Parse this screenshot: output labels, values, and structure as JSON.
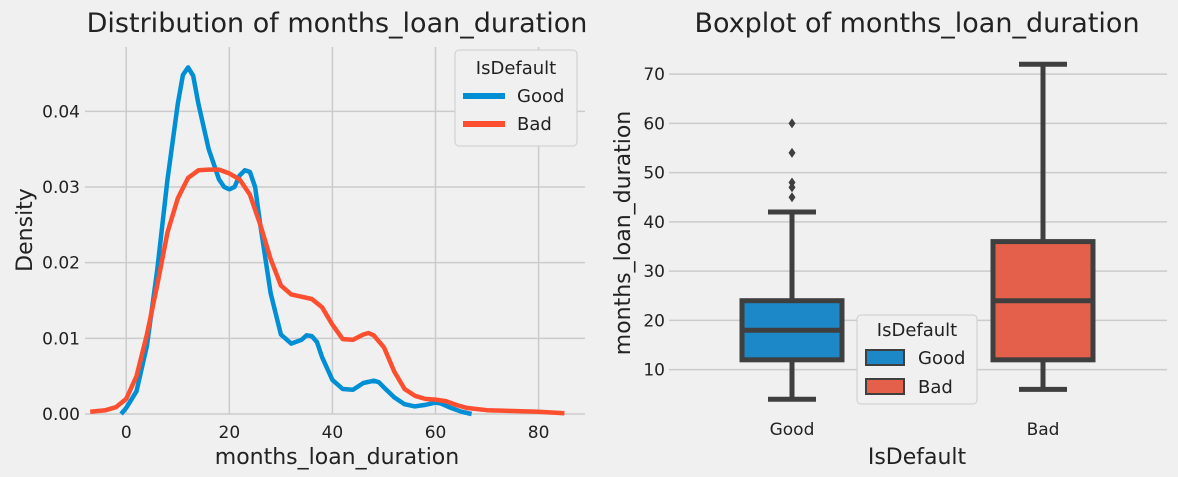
{
  "chart_data": [
    {
      "type": "line",
      "title": "Distribution of months_loan_duration",
      "xlabel": "months_loan_duration",
      "ylabel": "Density",
      "xlim": [
        -8,
        89
      ],
      "ylim": [
        0,
        0.0485
      ],
      "xticks": [
        0,
        20,
        40,
        60,
        80
      ],
      "yticks": [
        0.0,
        0.01,
        0.02,
        0.03,
        0.04
      ],
      "ytick_labels": [
        "0.00",
        "0.01",
        "0.02",
        "0.03",
        "0.04"
      ],
      "grid": true,
      "legend": {
        "title": "IsDefault",
        "placement": "top-right"
      },
      "series": [
        {
          "name": "Good",
          "color": "#008fd5",
          "points": [
            [
              -1,
              0.0
            ],
            [
              0,
              0.0008
            ],
            [
              2,
              0.003
            ],
            [
              4,
              0.009
            ],
            [
              6,
              0.019
            ],
            [
              8,
              0.031
            ],
            [
              10,
              0.041
            ],
            [
              11,
              0.0448
            ],
            [
              12,
              0.0458
            ],
            [
              13,
              0.0447
            ],
            [
              14,
              0.041
            ],
            [
              16,
              0.035
            ],
            [
              18,
              0.031
            ],
            [
              19,
              0.03
            ],
            [
              20,
              0.0297
            ],
            [
              21,
              0.03
            ],
            [
              22,
              0.0315
            ],
            [
              23,
              0.0322
            ],
            [
              24,
              0.032
            ],
            [
              25,
              0.03
            ],
            [
              26,
              0.025
            ],
            [
              28,
              0.016
            ],
            [
              30,
              0.0105
            ],
            [
              32,
              0.0093
            ],
            [
              34,
              0.0098
            ],
            [
              35,
              0.0104
            ],
            [
              36,
              0.0103
            ],
            [
              37,
              0.0095
            ],
            [
              38,
              0.0075
            ],
            [
              40,
              0.0045
            ],
            [
              42,
              0.0033
            ],
            [
              44,
              0.0032
            ],
            [
              46,
              0.0041
            ],
            [
              48,
              0.0044
            ],
            [
              49,
              0.0042
            ],
            [
              50,
              0.0035
            ],
            [
              52,
              0.0022
            ],
            [
              54,
              0.0013
            ],
            [
              56,
              0.001
            ],
            [
              58,
              0.0012
            ],
            [
              60,
              0.0015
            ],
            [
              61,
              0.0014
            ],
            [
              63,
              0.0008
            ],
            [
              65,
              0.0003
            ],
            [
              67,
              0.0
            ]
          ]
        },
        {
          "name": "Bad",
          "color": "#fc4f30",
          "points": [
            [
              -7,
              0.0003
            ],
            [
              -4,
              0.0005
            ],
            [
              -2,
              0.0009
            ],
            [
              0,
              0.002
            ],
            [
              2,
              0.005
            ],
            [
              4,
              0.0105
            ],
            [
              6,
              0.017
            ],
            [
              8,
              0.024
            ],
            [
              10,
              0.0285
            ],
            [
              12,
              0.0312
            ],
            [
              14,
              0.0322
            ],
            [
              16,
              0.0323
            ],
            [
              18,
              0.0323
            ],
            [
              20,
              0.0318
            ],
            [
              22,
              0.031
            ],
            [
              24,
              0.029
            ],
            [
              26,
              0.025
            ],
            [
              28,
              0.0205
            ],
            [
              30,
              0.017
            ],
            [
              32,
              0.0158
            ],
            [
              34,
              0.0155
            ],
            [
              36,
              0.0152
            ],
            [
              38,
              0.0141
            ],
            [
              40,
              0.0118
            ],
            [
              42,
              0.0099
            ],
            [
              44,
              0.0098
            ],
            [
              46,
              0.0105
            ],
            [
              47,
              0.0107
            ],
            [
              48,
              0.0104
            ],
            [
              50,
              0.0088
            ],
            [
              52,
              0.0056
            ],
            [
              54,
              0.0033
            ],
            [
              56,
              0.0024
            ],
            [
              58,
              0.002
            ],
            [
              60,
              0.0019
            ],
            [
              62,
              0.0017
            ],
            [
              64,
              0.0012
            ],
            [
              66,
              0.0008
            ],
            [
              70,
              0.0005
            ],
            [
              75,
              0.0004
            ],
            [
              80,
              0.0003
            ],
            [
              85,
              0.0001
            ]
          ]
        }
      ]
    },
    {
      "type": "box",
      "title": "Boxplot of months_loan_duration",
      "xlabel": "IsDefault",
      "ylabel": "months_loan_duration",
      "ylim": [
        1,
        75.5
      ],
      "yticks": [
        10,
        20,
        30,
        40,
        50,
        60,
        70
      ],
      "categories": [
        "Good",
        "Bad"
      ],
      "grid": true,
      "legend": {
        "title": "IsDefault",
        "placement": "lower-center"
      },
      "boxes": [
        {
          "name": "Good",
          "color": "#1c88c7",
          "whisker_low": 4,
          "q1": 12,
          "median": 18,
          "q3": 24,
          "whisker_high": 42,
          "outliers": [
            45,
            47,
            48,
            54,
            60
          ]
        },
        {
          "name": "Bad",
          "color": "#e5604a",
          "whisker_low": 6,
          "q1": 12,
          "median": 24,
          "q3": 36,
          "whisker_high": 72,
          "outliers": []
        }
      ]
    }
  ]
}
